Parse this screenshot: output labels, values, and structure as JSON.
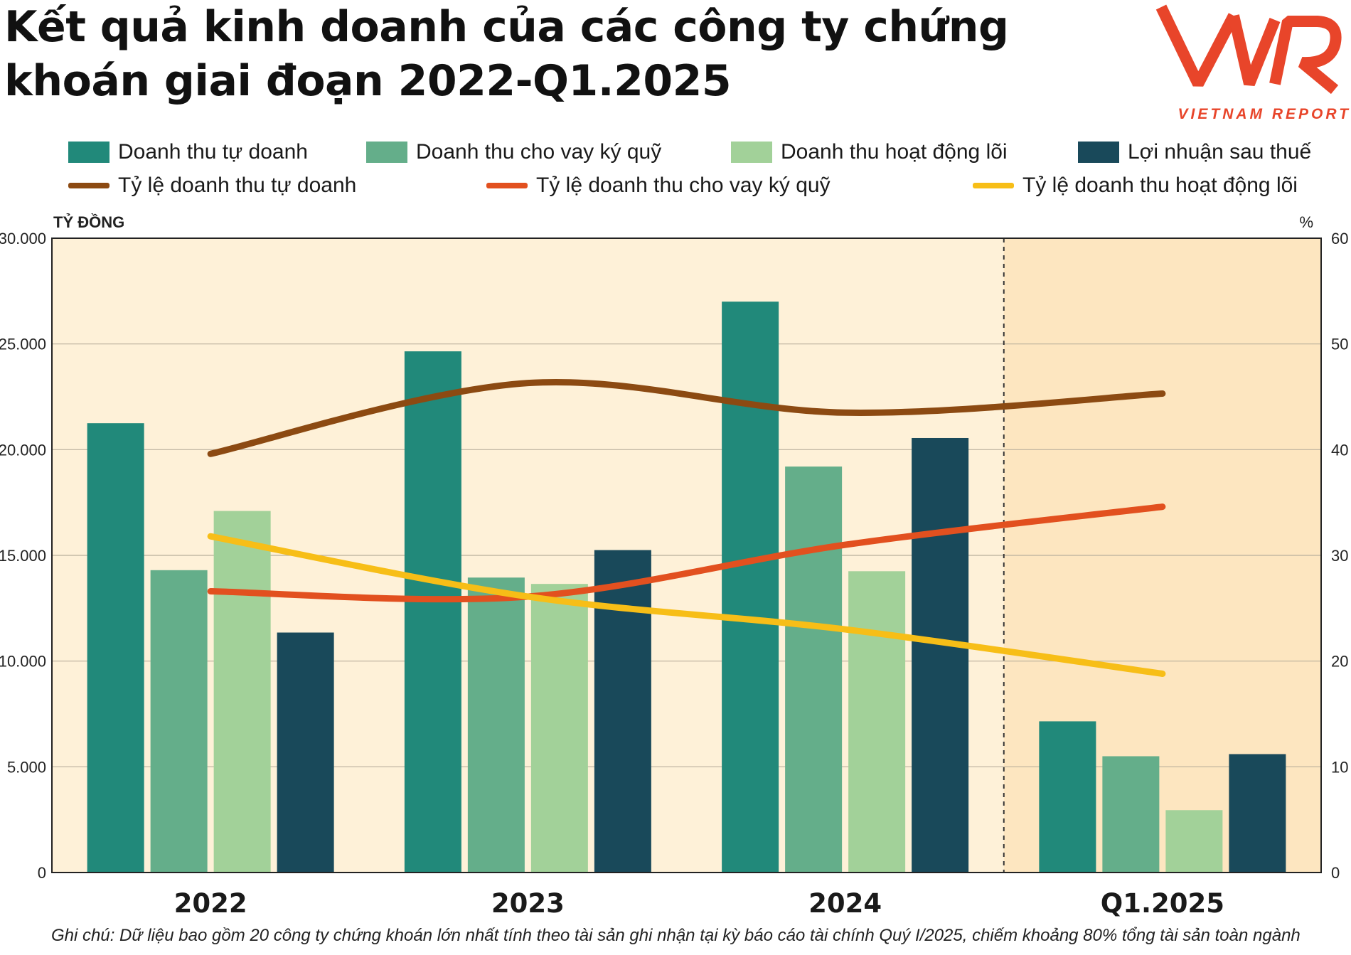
{
  "title": "Kết quả kinh doanh của các công ty chứng khoán giai đoạn 2022-Q1.2025",
  "logo": {
    "mark": "VNR",
    "text": "VIETNAM REPORT",
    "color": "#e8452a"
  },
  "legend": {
    "row1": [
      "Doanh thu tự doanh",
      "Doanh thu cho vay ký quỹ",
      "Doanh thu hoạt động lõi",
      "Lợi nhuận sau thuế"
    ],
    "row2": [
      "Tỷ lệ doanh thu tự doanh",
      "Tỷ lệ doanh thu cho vay ký quỹ",
      "Tỷ lệ doanh thu hoạt động lõi"
    ]
  },
  "note": "Ghi chú: Dữ liệu bao gồm 20 công ty chứng khoán lớn nhất tính theo tài sản ghi nhận tại kỳ báo cáo tài chính Quý I/2025, chiếm khoảng 80% tổng tài sản toàn ngành",
  "chart_data": {
    "type": "bar",
    "categories": [
      "2022",
      "2023",
      "2024",
      "Q1.2025"
    ],
    "ylabel": "TỶ ĐỒNG",
    "y2label": "%",
    "ylim": [
      0,
      30000
    ],
    "y2lim": [
      0,
      60
    ],
    "yticks": [
      "0",
      "5.000",
      "10.000",
      "15.000",
      "20.000",
      "25.000",
      "30.000"
    ],
    "y2ticks": [
      "0",
      "10",
      "20",
      "30",
      "40",
      "50",
      "60"
    ],
    "highlight_category": "Q1.2025",
    "series": [
      {
        "name": "Doanh thu tự doanh",
        "kind": "bar",
        "color": "#21897a",
        "values": [
          21250,
          24650,
          27000,
          7150
        ]
      },
      {
        "name": "Doanh thu cho vay ký quỹ",
        "kind": "bar",
        "color": "#64ae8a",
        "values": [
          14300,
          13950,
          19200,
          5500
        ]
      },
      {
        "name": "Doanh thu hoạt động lõi",
        "kind": "bar",
        "color": "#a2d199",
        "values": [
          17100,
          13650,
          14250,
          2950
        ]
      },
      {
        "name": "Lợi nhuận sau thuế",
        "kind": "bar",
        "color": "#19495a",
        "values": [
          11350,
          15250,
          20550,
          5600
        ]
      },
      {
        "name": "Tỷ lệ doanh thu tự doanh",
        "kind": "line",
        "axis": "right",
        "color": "#8c4a12",
        "values": [
          39.6,
          46.3,
          43.5,
          45.3
        ]
      },
      {
        "name": "Tỷ lệ doanh thu cho vay ký quỹ",
        "kind": "line",
        "axis": "right",
        "color": "#e2501f",
        "values": [
          26.6,
          26.1,
          31.0,
          34.6
        ]
      },
      {
        "name": "Tỷ lệ doanh thu hoạt động lõi",
        "kind": "line",
        "axis": "right",
        "color": "#f7be17",
        "values": [
          31.8,
          26.1,
          23.0,
          18.8
        ]
      }
    ]
  }
}
